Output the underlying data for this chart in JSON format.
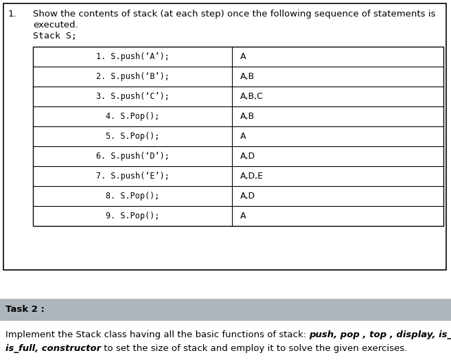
{
  "outer_box_color": "#000000",
  "outer_bg": "#ffffff",
  "task1_number": "1.",
  "task1_question_line1": "Show the contents of stack (at each step) once the following sequence of statements is",
  "task1_question_line2": "executed.",
  "task1_question_line3": "Stack S;",
  "table_commands": [
    "1. S.push(‘A’);",
    "2. S.push(‘B’);",
    "3. S.push(‘C’);",
    "4. S.Pop();",
    "5. S.Pop();",
    "6. S.push(‘D’);",
    "7. S.push(‘E’);",
    "8. S.Pop();",
    "9. S.Pop();"
  ],
  "table_results": [
    "A",
    "A,B",
    "A,B,C",
    "A,B",
    "A",
    "A,D",
    "A,D,E",
    "A,D",
    "A"
  ],
  "task2_label": "Task 2 :",
  "task2_bg": "#adb5bd",
  "bg_color": "#ffffff",
  "text_color": "#000000",
  "mono_font": "monospace",
  "normal_font": "DejaVu Sans",
  "figsize": [
    6.57,
    5.3
  ],
  "dpi": 100
}
